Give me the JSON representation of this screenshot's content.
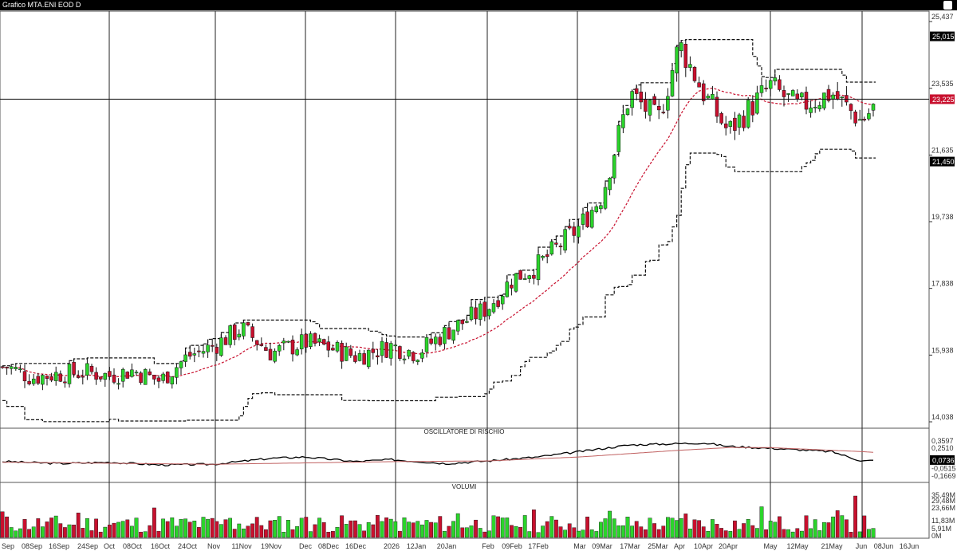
{
  "window": {
    "title": "Grafico MTA.ENI EOD D"
  },
  "chart_data": [
    {
      "type": "candlestick",
      "title": "",
      "y_ticks": [
        "25,437",
        "23,535",
        "21,635",
        "19,738",
        "17,838",
        "15,938",
        "14,038"
      ],
      "ylim": [
        14.038,
        25.437
      ],
      "price_tags": [
        {
          "label": "25,015",
          "value": 25.015,
          "color": "#000000"
        },
        {
          "label": "23,225",
          "value": 23.225,
          "color": "#c8102e"
        },
        {
          "label": "21,450",
          "value": 21.45,
          "color": "#000000"
        }
      ],
      "horizontal_line": 23.225,
      "x_labels": [
        "Sep",
        "08Sep",
        "16Sep",
        "24Sep",
        "Oct",
        "08Oct",
        "16Oct",
        "24Oct",
        "Nov",
        "11Nov",
        "19Nov",
        "Dec",
        "08Dec",
        "16Dec",
        "2026",
        "12Jan",
        "20Jan",
        "Feb",
        "09Feb",
        "17Feb",
        "Mar",
        "09Mar",
        "17Mar",
        "25Mar",
        "Apr",
        "10Apr",
        "20Apr",
        "May",
        "12May",
        "21May",
        "Jun",
        "08Jun",
        "16Jun"
      ],
      "month_separators": [
        "Sep",
        "Oct",
        "Nov",
        "Dec",
        "2026",
        "Feb",
        "Mar",
        "Apr",
        "May",
        "Jun"
      ],
      "close_anchors": [
        [
          "Sep",
          15.6
        ],
        [
          "08Sep",
          15.3
        ],
        [
          "16Sep",
          15.4
        ],
        [
          "24Sep",
          15.45
        ],
        [
          "Oct",
          15.35
        ],
        [
          "08Oct",
          15.5
        ],
        [
          "16Oct",
          15.2
        ],
        [
          "24Oct",
          15.9
        ],
        [
          "Nov",
          16.2
        ],
        [
          "11Nov",
          16.7
        ],
        [
          "19Nov",
          16.0
        ],
        [
          "Dec",
          16.3
        ],
        [
          "08Dec",
          16.15
        ],
        [
          "16Dec",
          15.9
        ],
        [
          "2026",
          16.2
        ],
        [
          "12Jan",
          16.0
        ],
        [
          "20Jan",
          16.6
        ],
        [
          "Feb",
          17.3
        ],
        [
          "09Feb",
          18.1
        ],
        [
          "17Feb",
          18.5
        ],
        [
          "Mar",
          19.6
        ],
        [
          "09Mar",
          20.5
        ],
        [
          "17Mar",
          23.4
        ],
        [
          "25Mar",
          22.6
        ],
        [
          "Apr",
          24.8
        ],
        [
          "10Apr",
          23.4
        ],
        [
          "20Apr",
          22.3
        ],
        [
          "May",
          23.6
        ],
        [
          "12May",
          23.0
        ],
        [
          "21May",
          23.4
        ],
        [
          "Jun",
          22.6
        ],
        [
          "08Jun",
          23.3
        ]
      ],
      "moving_average_style": "red dashed",
      "channel_style": "black dashed",
      "grid": false
    },
    {
      "type": "line",
      "title": "OSCILLATORE DI RISCHIO",
      "y_ticks": [
        "0,3597",
        "0,2510",
        "0,0736",
        "-0,0515",
        "-0,1669"
      ],
      "value_tag": {
        "label": "0,0736",
        "value": 0.0736
      },
      "ylim": [
        -0.1669,
        0.3597
      ],
      "series": [
        {
          "color": "#000000",
          "anchors": [
            [
              "Sep",
              0.05
            ],
            [
              "16Sep",
              0.02
            ],
            [
              "Oct",
              0.04
            ],
            [
              "16Oct",
              0.0
            ],
            [
              "Nov",
              0.01
            ],
            [
              "19Nov",
              0.1
            ],
            [
              "Dec",
              0.12
            ],
            [
              "16Dec",
              0.05
            ],
            [
              "2026",
              0.08
            ],
            [
              "20Jan",
              0.02
            ],
            [
              "Feb",
              0.06
            ],
            [
              "17Feb",
              0.12
            ],
            [
              "Mar",
              0.2
            ],
            [
              "17Mar",
              0.3
            ],
            [
              "Apr",
              0.32
            ],
            [
              "10Apr",
              0.33
            ],
            [
              "20Apr",
              0.28
            ],
            [
              "May",
              0.25
            ],
            [
              "21May",
              0.2
            ],
            [
              "Jun",
              0.06
            ],
            [
              "08Jun",
              0.07
            ]
          ]
        },
        {
          "color": "#c06060",
          "anchors": [
            [
              "Sep",
              0.04
            ],
            [
              "Nov",
              0.01
            ],
            [
              "Jan",
              0.05
            ],
            [
              "Feb",
              0.06
            ],
            [
              "Mar",
              0.12
            ],
            [
              "Apr",
              0.22
            ],
            [
              "20Apr",
              0.26
            ],
            [
              "May",
              0.26
            ],
            [
              "Jun",
              0.2
            ],
            [
              "08Jun",
              0.18
            ]
          ]
        }
      ]
    },
    {
      "type": "bar",
      "title": "VOLUMI",
      "y_ticks": [
        "35,49M",
        "29,48M",
        "23,66M",
        "11,83M",
        "5,91M",
        "0M"
      ],
      "colors": {
        "up": "#2bd42b",
        "down": "#c8102e"
      }
    }
  ]
}
